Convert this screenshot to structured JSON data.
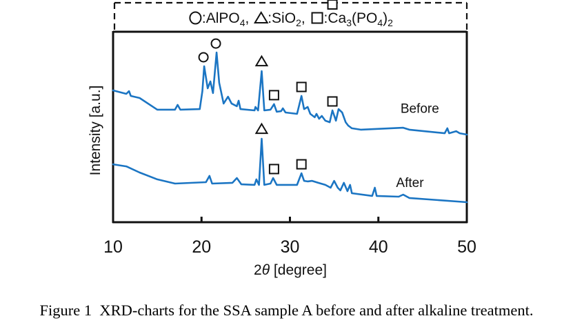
{
  "chart_data": {
    "type": "line",
    "title": "",
    "legend": {
      "placement": "top",
      "boxed": true,
      "border_style": "dashed",
      "entries": [
        {
          "marker": "circle",
          "label": "AlPO",
          "subscript": "4",
          "suffix": ","
        },
        {
          "marker": "triangle",
          "label": "SiO",
          "subscript": "2",
          "suffix": ","
        },
        {
          "marker": "square",
          "label": "Ca",
          "subscript": "3",
          "formula_rest": "(PO",
          "subscript2": "4",
          "close": ")",
          "subscript3": "2"
        }
      ]
    },
    "xlabel": "2θ [degree]",
    "xlabel_prefix": "2",
    "xlabel_symbol": "θ",
    "xlabel_suffix": " [degree]",
    "ylabel": "Intensity [a.u.]",
    "xlim": [
      10,
      50
    ],
    "ylim": [
      0,
      100
    ],
    "x_ticks": [
      10,
      20,
      30,
      40,
      50
    ],
    "x_tick_labels": [
      "10",
      "20",
      "30",
      "40",
      "50"
    ],
    "y_ticks": [],
    "grid": false,
    "line_color": "#1b75c3",
    "series": [
      {
        "name": "Before",
        "label": "Before",
        "label_at": [
          42.5,
          57.5
        ],
        "points": [
          [
            10.0,
            69.2
          ],
          [
            11.5,
            67.4
          ],
          [
            11.8,
            68.8
          ],
          [
            12.0,
            66.3
          ],
          [
            13.0,
            65.2
          ],
          [
            15.0,
            59.1
          ],
          [
            17.0,
            59.1
          ],
          [
            17.3,
            61.6
          ],
          [
            17.6,
            59.1
          ],
          [
            19.8,
            59.4
          ],
          [
            20.1,
            68.8
          ],
          [
            20.3,
            81.9
          ],
          [
            20.7,
            70.3
          ],
          [
            21.0,
            73.9
          ],
          [
            21.3,
            67.8
          ],
          [
            21.7,
            89.1
          ],
          [
            22.0,
            73.2
          ],
          [
            22.5,
            62.3
          ],
          [
            23.0,
            65.9
          ],
          [
            23.4,
            62.3
          ],
          [
            24.0,
            60.9
          ],
          [
            24.2,
            63.8
          ],
          [
            24.4,
            59.4
          ],
          [
            26.0,
            58.7
          ],
          [
            26.1,
            60.5
          ],
          [
            26.4,
            58.7
          ],
          [
            26.8,
            79.3
          ],
          [
            27.1,
            58.7
          ],
          [
            27.8,
            59.1
          ],
          [
            28.2,
            62.0
          ],
          [
            28.5,
            58.0
          ],
          [
            29.0,
            58.3
          ],
          [
            29.2,
            59.8
          ],
          [
            29.5,
            57.6
          ],
          [
            30.8,
            56.9
          ],
          [
            31.3,
            66.3
          ],
          [
            31.6,
            59.4
          ],
          [
            32.0,
            60.5
          ],
          [
            32.3,
            56.9
          ],
          [
            32.8,
            55.1
          ],
          [
            33.0,
            56.9
          ],
          [
            33.3,
            54.3
          ],
          [
            33.6,
            55.8
          ],
          [
            34.0,
            53.3
          ],
          [
            34.5,
            52.5
          ],
          [
            34.8,
            58.7
          ],
          [
            35.2,
            53.3
          ],
          [
            35.5,
            59.4
          ],
          [
            35.9,
            57.6
          ],
          [
            36.3,
            52.5
          ],
          [
            36.6,
            50.7
          ],
          [
            37.0,
            49.3
          ],
          [
            38.0,
            48.6
          ],
          [
            42.8,
            49.6
          ],
          [
            43.5,
            48.6
          ],
          [
            47.5,
            46.7
          ],
          [
            47.8,
            49.3
          ],
          [
            48.0,
            46.7
          ],
          [
            48.8,
            47.8
          ],
          [
            49.2,
            46.7
          ],
          [
            50.0,
            46.0
          ]
        ],
        "peak_markers": [
          {
            "x": 20.3,
            "phase": "AlPO4",
            "marker": "circle"
          },
          {
            "x": 21.7,
            "phase": "AlPO4",
            "marker": "circle"
          },
          {
            "x": 26.8,
            "phase": "SiO2",
            "marker": "triangle"
          },
          {
            "x": 28.2,
            "phase": "Ca3(PO4)2",
            "marker": "square"
          },
          {
            "x": 31.3,
            "phase": "Ca3(PO4)2",
            "marker": "square"
          },
          {
            "x": 34.8,
            "phase": "Ca3(PO4)2",
            "marker": "square"
          }
        ]
      },
      {
        "name": "After",
        "label": "After",
        "label_at": [
          42.0,
          18.5
        ],
        "points": [
          [
            10.0,
            30.4
          ],
          [
            11.5,
            29.3
          ],
          [
            13.0,
            26.1
          ],
          [
            15.0,
            22.5
          ],
          [
            17.0,
            20.3
          ],
          [
            20.5,
            21.0
          ],
          [
            20.9,
            24.3
          ],
          [
            21.2,
            20.3
          ],
          [
            23.5,
            20.7
          ],
          [
            24.0,
            23.2
          ],
          [
            24.5,
            19.9
          ],
          [
            26.0,
            19.6
          ],
          [
            26.2,
            22.5
          ],
          [
            26.5,
            19.6
          ],
          [
            26.8,
            43.8
          ],
          [
            27.1,
            19.6
          ],
          [
            27.8,
            20.3
          ],
          [
            28.1,
            23.2
          ],
          [
            28.5,
            19.6
          ],
          [
            30.8,
            19.6
          ],
          [
            31.3,
            25.7
          ],
          [
            31.6,
            21.7
          ],
          [
            32.0,
            21.4
          ],
          [
            32.5,
            21.7
          ],
          [
            33.2,
            20.7
          ],
          [
            34.0,
            19.6
          ],
          [
            34.6,
            18.1
          ],
          [
            35.0,
            21.7
          ],
          [
            35.4,
            18.1
          ],
          [
            35.7,
            16.7
          ],
          [
            36.1,
            20.7
          ],
          [
            36.5,
            16.3
          ],
          [
            36.8,
            19.6
          ],
          [
            37.0,
            15.2
          ],
          [
            39.3,
            13.8
          ],
          [
            39.6,
            18.1
          ],
          [
            39.8,
            13.8
          ],
          [
            42.3,
            13.4
          ],
          [
            42.8,
            14.5
          ],
          [
            43.5,
            12.7
          ],
          [
            50.0,
            10.5
          ]
        ],
        "peak_markers": [
          {
            "x": 26.8,
            "phase": "SiO2",
            "marker": "triangle"
          },
          {
            "x": 28.2,
            "phase": "Ca3(PO4)2",
            "marker": "square"
          },
          {
            "x": 31.3,
            "phase": "Ca3(PO4)2",
            "marker": "square"
          },
          {
            "x": 34.8,
            "phase": "Ca3(PO4)2",
            "marker": "square"
          }
        ]
      }
    ]
  },
  "caption": "Figure 1  XRD-charts for the SSA sample A before and after alkaline treatment."
}
